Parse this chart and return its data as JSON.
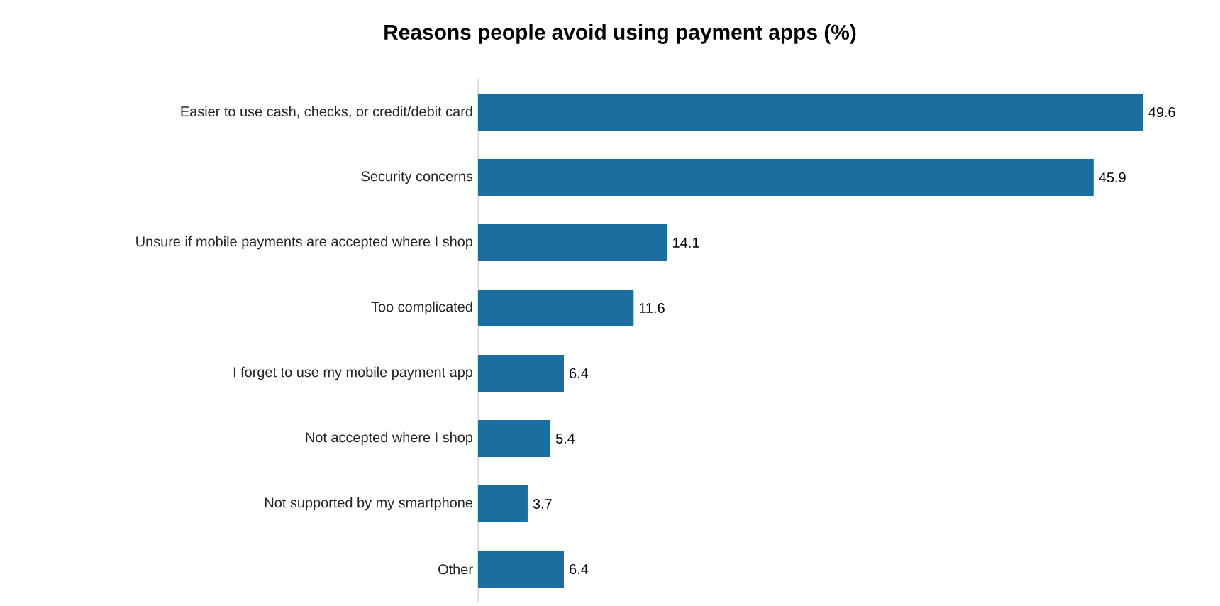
{
  "chart_data": {
    "type": "bar",
    "orientation": "horizontal",
    "title": "Reasons people avoid using payment apps (%)",
    "categories": [
      "Easier to use cash, checks, or credit/debit card",
      "Security concerns",
      "Unsure if mobile payments are accepted where I shop",
      "Too complicated",
      "I forget to use my mobile payment app",
      "Not accepted where I shop",
      "Not supported by my smartphone",
      "Other"
    ],
    "values": [
      49.6,
      45.9,
      14.1,
      11.6,
      6.4,
      5.4,
      3.7,
      6.4
    ],
    "color": "#1b6e9e",
    "data_labels": true
  }
}
